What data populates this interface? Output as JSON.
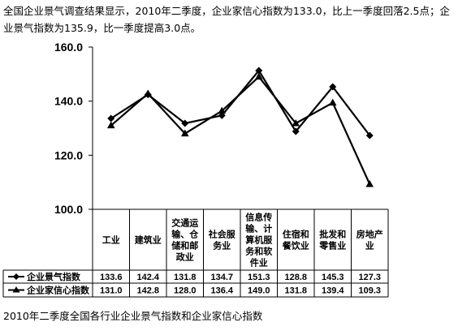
{
  "intro_text": "全国企业景气调查结果显示，2010年二季度，企业家信心指数为133.0，比上一季度回落2.5点；企业景气指数为135.9，比一季度提高3.0点。",
  "caption": "2010年二季度全国各行业企业景气指数和企业家信心指数",
  "chart_data": {
    "type": "line",
    "title": "",
    "xlabel": "",
    "ylabel": "",
    "ylim": [
      100,
      160
    ],
    "yticks": [
      "100.0",
      "120.0",
      "140.0",
      "160.0"
    ],
    "categories": [
      [
        "工业"
      ],
      [
        "建筑业"
      ],
      [
        "交通运",
        "输、仓",
        "储和邮",
        "政业"
      ],
      [
        "社会服",
        "务业"
      ],
      [
        "信息传",
        "输、计",
        "算机服",
        "务和软",
        "件业"
      ],
      [
        "住宿和",
        "餐饮业"
      ],
      [
        "批发和",
        "零售业"
      ],
      [
        "房地产",
        "业"
      ]
    ],
    "series": [
      {
        "name": "企业景气指数",
        "marker": "diamond",
        "values": [
          133.6,
          142.4,
          131.8,
          134.7,
          151.3,
          128.8,
          145.3,
          127.3
        ]
      },
      {
        "name": "企业家信心指数",
        "marker": "triangle",
        "values": [
          131.0,
          142.8,
          128.0,
          136.4,
          149.0,
          131.8,
          139.4,
          109.3
        ]
      }
    ],
    "grid": false,
    "legend": "data-table"
  }
}
